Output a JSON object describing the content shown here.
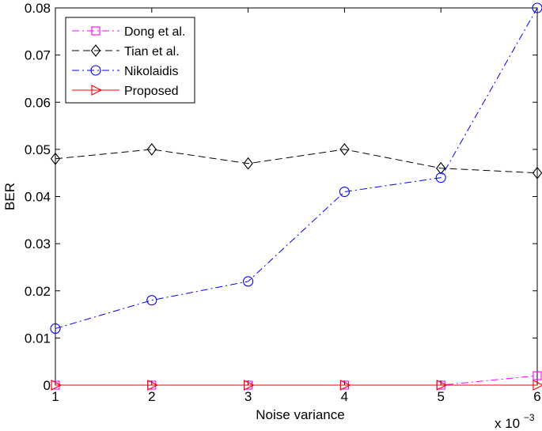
{
  "chart_data": {
    "type": "line",
    "xlabel": "Noise variance",
    "ylabel": "BER",
    "x_multiplier_label": "x 10",
    "x_multiplier_exponent": "−3",
    "x": [
      1,
      2,
      3,
      4,
      5,
      6
    ],
    "xlim": [
      1,
      6
    ],
    "ylim": [
      0,
      0.08
    ],
    "x_ticks": [
      "1",
      "2",
      "3",
      "4",
      "5",
      "6"
    ],
    "y_ticks": [
      "0",
      "0.01",
      "0.02",
      "0.03",
      "0.04",
      "0.05",
      "0.06",
      "0.07",
      "0.08"
    ],
    "grid": false,
    "legend_position": "top-left",
    "series": [
      {
        "name": "Dong et al.",
        "values": [
          0,
          0,
          0,
          0,
          0,
          0.002
        ],
        "color": "#ff00ff",
        "marker": "square",
        "dash": "dashdot"
      },
      {
        "name": "Tian et al.",
        "values": [
          0.048,
          0.05,
          0.047,
          0.05,
          0.046,
          0.045
        ],
        "color": "#000000",
        "marker": "diamond",
        "dash": "dashed"
      },
      {
        "name": "Nikolaidis",
        "values": [
          0.012,
          0.018,
          0.022,
          0.041,
          0.044,
          0.08
        ],
        "color": "#0000ff",
        "marker": "circle",
        "dash": "dashdot"
      },
      {
        "name": "Proposed",
        "values": [
          0,
          0,
          0,
          0,
          0,
          0
        ],
        "color": "#ff0000",
        "marker": "triangle-right",
        "dash": "solid"
      }
    ]
  }
}
